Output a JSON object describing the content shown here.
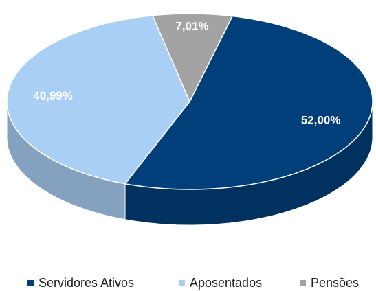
{
  "chart_data": {
    "type": "pie",
    "categories": [
      "Servidores Ativos",
      "Aposentados",
      "Pensões"
    ],
    "values": [
      52.0,
      40.99,
      7.01
    ],
    "value_labels": [
      "52,00%",
      "40,99%",
      "7,01%"
    ],
    "colors": [
      "#003f7a",
      "#a9cff5",
      "#a3a3a3"
    ]
  }
}
